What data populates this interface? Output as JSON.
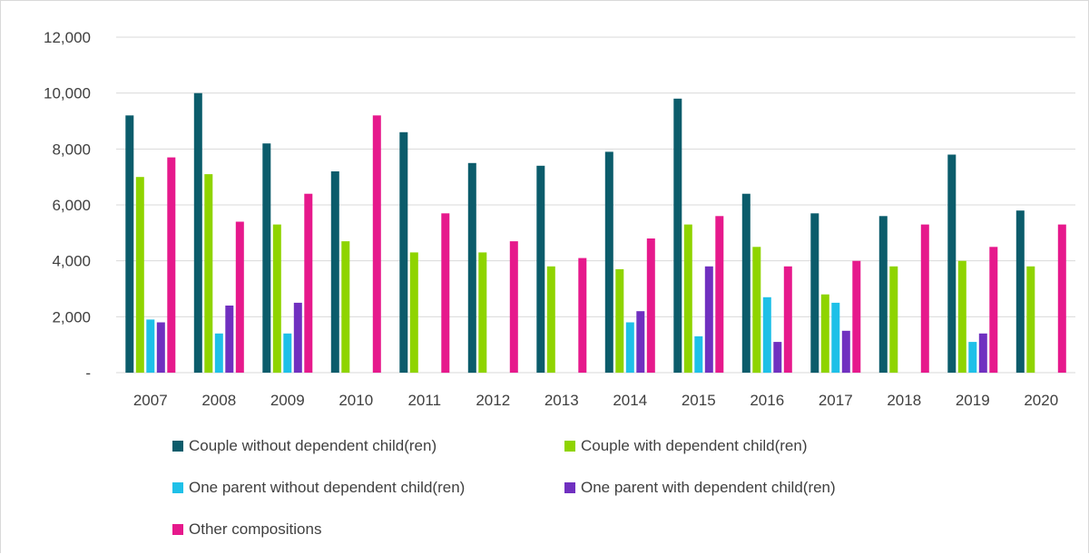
{
  "chart_data": {
    "type": "bar",
    "categories": [
      "2007",
      "2008",
      "2009",
      "2010",
      "2011",
      "2012",
      "2013",
      "2014",
      "2015",
      "2016",
      "2017",
      "2018",
      "2019",
      "2020"
    ],
    "ylim": [
      0,
      12000
    ],
    "yticks": [
      0,
      2000,
      4000,
      6000,
      8000,
      10000,
      12000
    ],
    "ytick_labels": [
      "-",
      "2,000",
      "4,000",
      "6,000",
      "8,000",
      "10,000",
      "12,000"
    ],
    "grid": true,
    "legend_position": "bottom",
    "series": [
      {
        "name": "Couple without dependent child(ren)",
        "color": "#0b5c6b",
        "values": [
          9200,
          10000,
          8200,
          7200,
          8600,
          7500,
          7400,
          7900,
          9800,
          6400,
          5700,
          5600,
          7800,
          5800
        ]
      },
      {
        "name": "Couple with dependent child(ren)",
        "color": "#8fd400",
        "values": [
          7000,
          7100,
          5300,
          4700,
          4300,
          4300,
          3800,
          3700,
          5300,
          4500,
          2800,
          3800,
          4000,
          3800
        ]
      },
      {
        "name": "One parent without dependent child(ren)",
        "color": "#1ec0e8",
        "values": [
          1900,
          1400,
          1400,
          0,
          0,
          0,
          0,
          1800,
          1300,
          2700,
          2500,
          0,
          1100,
          0
        ]
      },
      {
        "name": "One parent with dependent child(ren)",
        "color": "#7030c0",
        "values": [
          1800,
          2400,
          2500,
          0,
          0,
          0,
          0,
          2200,
          3800,
          1100,
          1500,
          0,
          1400,
          0
        ]
      },
      {
        "name": "Other compositions",
        "color": "#e6198c",
        "values": [
          7700,
          5400,
          6400,
          9200,
          5700,
          4700,
          4100,
          4800,
          5600,
          3800,
          4000,
          5300,
          4500,
          5300
        ]
      }
    ]
  }
}
